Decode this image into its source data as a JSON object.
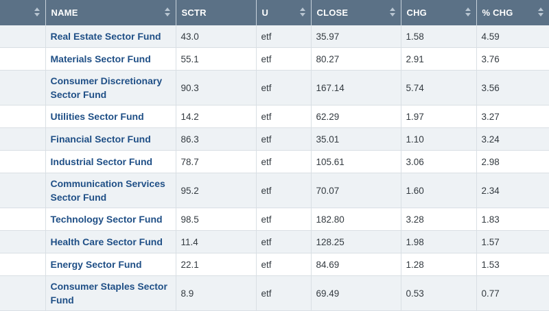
{
  "columns": [
    "",
    "NAME",
    "SCTR",
    "U",
    "CLOSE",
    "CHG",
    "% CHG"
  ],
  "rows": [
    {
      "name": "Real Estate Sector Fund",
      "sctr": "43.0",
      "u": "etf",
      "close": "35.97",
      "chg": "1.58",
      "pct": "4.59"
    },
    {
      "name": "Materials Sector Fund",
      "sctr": "55.1",
      "u": "etf",
      "close": "80.27",
      "chg": "2.91",
      "pct": "3.76"
    },
    {
      "name": "Consumer Discretionary Sector Fund",
      "sctr": "90.3",
      "u": "etf",
      "close": "167.14",
      "chg": "5.74",
      "pct": "3.56"
    },
    {
      "name": "Utilities Sector Fund",
      "sctr": "14.2",
      "u": "etf",
      "close": "62.29",
      "chg": "1.97",
      "pct": "3.27"
    },
    {
      "name": "Financial Sector Fund",
      "sctr": "86.3",
      "u": "etf",
      "close": "35.01",
      "chg": "1.10",
      "pct": "3.24"
    },
    {
      "name": "Industrial Sector Fund",
      "sctr": "78.7",
      "u": "etf",
      "close": "105.61",
      "chg": "3.06",
      "pct": "2.98"
    },
    {
      "name": "Communication Services Sector Fund",
      "sctr": "95.2",
      "u": "etf",
      "close": "70.07",
      "chg": "1.60",
      "pct": "2.34"
    },
    {
      "name": "Technology Sector Fund",
      "sctr": "98.5",
      "u": "etf",
      "close": "182.80",
      "chg": "3.28",
      "pct": "1.83"
    },
    {
      "name": "Health Care Sector Fund",
      "sctr": "11.4",
      "u": "etf",
      "close": "128.25",
      "chg": "1.98",
      "pct": "1.57"
    },
    {
      "name": "Energy Sector Fund",
      "sctr": "22.1",
      "u": "etf",
      "close": "84.69",
      "chg": "1.28",
      "pct": "1.53"
    },
    {
      "name": "Consumer Staples Sector Fund",
      "sctr": "8.9",
      "u": "etf",
      "close": "69.49",
      "chg": "0.53",
      "pct": "0.77"
    }
  ]
}
